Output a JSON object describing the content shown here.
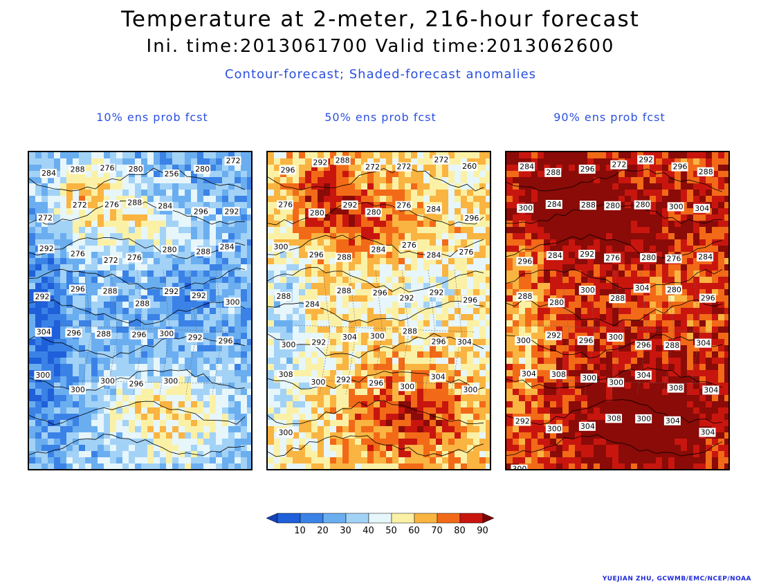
{
  "header": {
    "title": "Temperature at 2-meter, 216-hour forecast",
    "init_line": "Ini. time:2013061700    Valid time:2013062600",
    "subtitle": "Contour-forecast; Shaded-forecast anomalies"
  },
  "panels": [
    {
      "title": "10% ens prob fcst",
      "base_prob": 28,
      "contour_labels": [
        "284",
        "288",
        "276",
        "280",
        "256",
        "280",
        "272",
        "272",
        "272",
        "276",
        "288",
        "284",
        "296",
        "292",
        "292",
        "276",
        "272",
        "276",
        "280",
        "288",
        "284",
        "292",
        "296",
        "288",
        "288",
        "292",
        "292",
        "300",
        "304",
        "296",
        "288",
        "296",
        "300",
        "292",
        "296",
        "300",
        "300",
        "300",
        "296",
        "300"
      ]
    },
    {
      "title": "50% ens prob fcst",
      "base_prob": 55,
      "contour_labels": [
        "296",
        "292",
        "288",
        "272",
        "272",
        "272",
        "260",
        "276",
        "280",
        "292",
        "280",
        "276",
        "284",
        "296",
        "300",
        "296",
        "288",
        "284",
        "276",
        "284",
        "276",
        "288",
        "284",
        "288",
        "296",
        "292",
        "292",
        "296",
        "300",
        "292",
        "304",
        "300",
        "288",
        "296",
        "304",
        "308",
        "300",
        "292",
        "296",
        "300",
        "304",
        "300",
        "300"
      ]
    },
    {
      "title": "90% ens prob fcst",
      "base_prob": 82,
      "contour_labels": [
        "284",
        "288",
        "296",
        "272",
        "292",
        "296",
        "288",
        "300",
        "284",
        "288",
        "280",
        "280",
        "300",
        "304",
        "296",
        "284",
        "292",
        "276",
        "280",
        "276",
        "284",
        "288",
        "280",
        "300",
        "288",
        "304",
        "280",
        "296",
        "300",
        "292",
        "296",
        "300",
        "296",
        "288",
        "304",
        "304",
        "308",
        "300",
        "300",
        "304",
        "308",
        "304",
        "292",
        "300",
        "304",
        "308",
        "300",
        "304",
        "304",
        "300"
      ]
    }
  ],
  "colorbar": {
    "labels": [
      "10",
      "20",
      "30",
      "40",
      "50",
      "60",
      "70",
      "80",
      "90"
    ],
    "colors": [
      "#1f5fd9",
      "#3b82e6",
      "#6aaef0",
      "#a3d2f7",
      "#e6f6fb",
      "#fbf1a6",
      "#f9b441",
      "#f26a17",
      "#c8160f",
      "#8a0b07"
    ],
    "ends": [
      "#1243b8",
      "#7a0505"
    ]
  },
  "credit": "YUEJIAN ZHU, GCWMB/EMC/NCEP/NOAA"
}
